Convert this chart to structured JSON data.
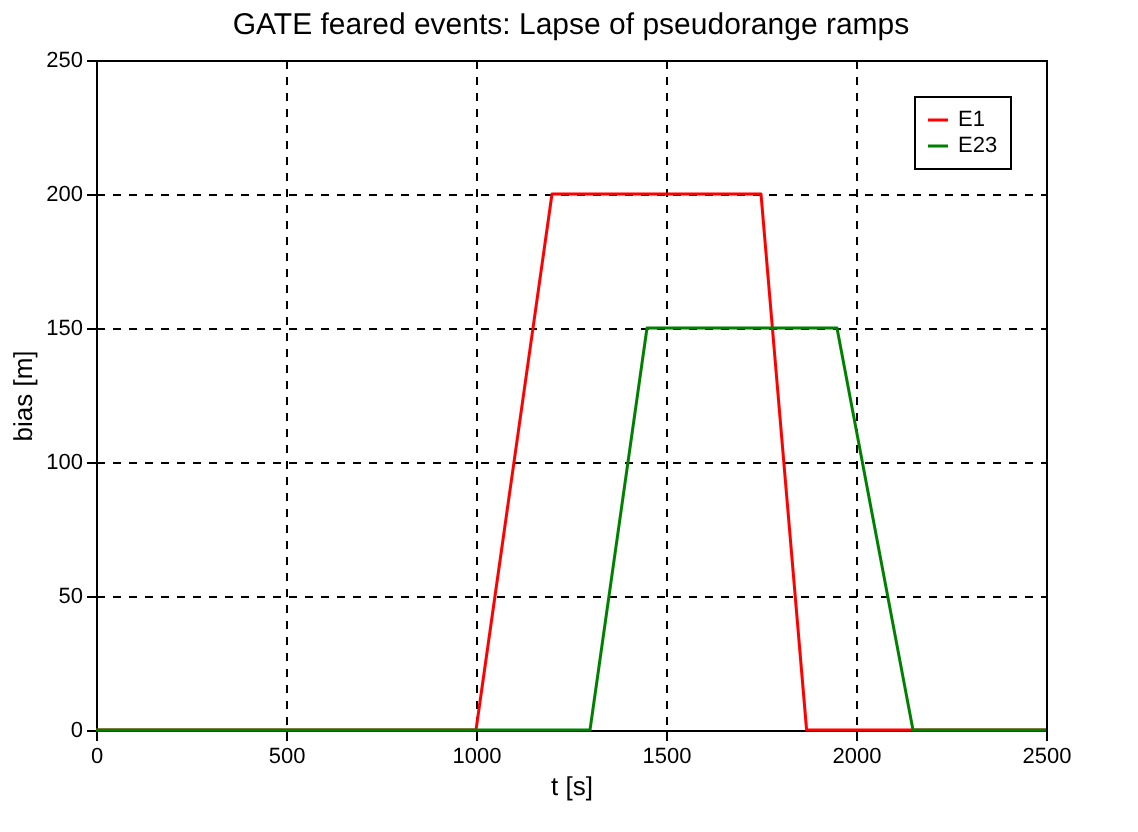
{
  "chart_data": {
    "type": "line",
    "title": "GATE feared events: Lapse of pseudorange ramps",
    "xlabel": "t [s]",
    "ylabel": "bias [m]",
    "xlim": [
      0,
      2500
    ],
    "xticks": [
      0,
      500,
      1000,
      1500,
      2000,
      2500
    ],
    "ylim": [
      0,
      250
    ],
    "yticks": [
      0,
      50,
      100,
      150,
      200,
      250
    ],
    "grid": true,
    "legend": "top right",
    "marker": "none",
    "line_style": "solid",
    "series": [
      {
        "name": "E1",
        "color": "#ff0000",
        "x": [
          0,
          1000,
          1200,
          1750,
          1870,
          2500
        ],
        "values": [
          0,
          0,
          200,
          200,
          0,
          0
        ]
      },
      {
        "name": "E23",
        "color": "#008000",
        "x": [
          0,
          1300,
          1450,
          1950,
          2150,
          2500
        ],
        "values": [
          0,
          0,
          150,
          150,
          0,
          0
        ]
      }
    ]
  }
}
